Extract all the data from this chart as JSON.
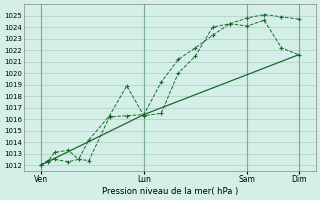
{
  "background_color": "#d4eee8",
  "grid_color": "#b0ccc4",
  "line_color": "#1a6b2a",
  "marker_color": "#1a6b2a",
  "xlabel_text": "Pression niveau de la mer( hPa )",
  "ylim": [
    1011.5,
    1026.0
  ],
  "yticks": [
    1012,
    1013,
    1014,
    1015,
    1016,
    1017,
    1018,
    1019,
    1020,
    1021,
    1022,
    1023,
    1024,
    1025
  ],
  "xtick_labels": [
    "Ven",
    "Lun",
    "Sam",
    "Dim"
  ],
  "xtick_positions": [
    0.5,
    3.5,
    6.5,
    8.0
  ],
  "xlim": [
    0,
    8.5
  ],
  "series1_x": [
    0.5,
    0.7,
    0.9,
    1.3,
    1.6,
    1.9,
    2.5,
    3.0,
    3.5,
    4.0,
    4.5,
    5.0,
    5.5,
    6.0,
    6.5,
    7.0,
    7.5,
    8.0
  ],
  "series1_y": [
    1012.0,
    1012.3,
    1013.1,
    1013.3,
    1012.5,
    1012.4,
    1016.2,
    1016.3,
    1016.4,
    1019.2,
    1021.2,
    1022.2,
    1023.3,
    1024.3,
    1024.8,
    1025.1,
    1024.9,
    1024.7
  ],
  "series2_x": [
    0.5,
    0.7,
    0.9,
    1.3,
    1.6,
    1.9,
    2.5,
    3.0,
    3.5,
    4.0,
    4.5,
    5.0,
    5.5,
    6.0,
    6.5,
    7.0,
    7.5,
    8.0
  ],
  "series2_y": [
    1012.0,
    1012.4,
    1012.5,
    1012.3,
    1012.5,
    1014.2,
    1016.3,
    1018.9,
    1016.3,
    1016.5,
    1020.0,
    1021.5,
    1024.0,
    1024.3,
    1024.1,
    1024.6,
    1022.2,
    1021.6
  ],
  "series3_x": [
    0.5,
    3.5,
    8.0
  ],
  "series3_y": [
    1012.0,
    1016.4,
    1021.6
  ],
  "vline_positions": [
    0.5,
    3.5,
    6.5,
    8.0
  ],
  "vline_color": "#7aaa99",
  "figsize": [
    3.2,
    2.0
  ],
  "dpi": 100
}
